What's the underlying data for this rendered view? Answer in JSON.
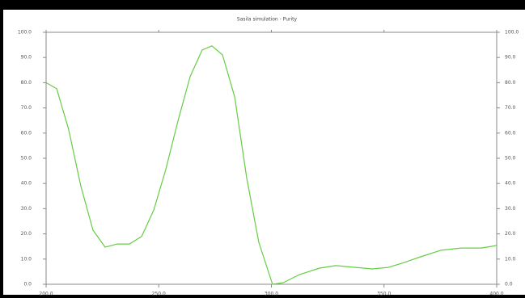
{
  "chart_data": {
    "type": "line",
    "title": "Sasila simulation - Purity",
    "x": [
      200,
      204.7,
      210,
      215.4,
      220.8,
      226.2,
      231.6,
      237,
      242.4,
      247.8,
      253.1,
      258.5,
      263.9,
      269.3,
      273.6,
      278.3,
      283.7,
      289,
      294.4,
      300.5,
      305.2,
      312.4,
      321.4,
      328.5,
      337.5,
      344.7,
      351.9,
      359.1,
      366.2,
      375.2,
      384.2,
      393.2,
      400
    ],
    "series": [
      {
        "name": "Purity",
        "color": "#66cc44",
        "values": [
          80,
          77.6,
          61.5,
          39,
          21.5,
          14.7,
          16,
          16,
          19,
          29.5,
          45.5,
          64.7,
          82.4,
          93,
          94.6,
          91,
          74.4,
          42.3,
          16.7,
          0,
          0.6,
          3.8,
          6.4,
          7.4,
          6.7,
          6.1,
          6.7,
          8.7,
          10.9,
          13.5,
          14.4,
          14.4,
          15.4
        ]
      }
    ],
    "xlim": [
      200,
      400
    ],
    "xticks": [
      {
        "value": 200,
        "label": "200.0"
      },
      {
        "value": 250,
        "label": "250.0"
      },
      {
        "value": 300,
        "label": "300.0"
      },
      {
        "value": 350,
        "label": "350.0"
      },
      {
        "value": 400,
        "label": "400.0"
      }
    ],
    "ylim": [
      0,
      100
    ],
    "yticks": [
      {
        "value": 0,
        "label": "0.0"
      },
      {
        "value": 10,
        "label": "10.0"
      },
      {
        "value": 20,
        "label": "20.0"
      },
      {
        "value": 30,
        "label": "30.0"
      },
      {
        "value": 40,
        "label": "40.0"
      },
      {
        "value": 50,
        "label": "50.0"
      },
      {
        "value": 60,
        "label": "60.0"
      },
      {
        "value": 70,
        "label": "70.0"
      },
      {
        "value": 80,
        "label": "80.0"
      },
      {
        "value": 90,
        "label": "90.0"
      },
      {
        "value": 100,
        "label": "100.0"
      }
    ],
    "y2lim": [
      0,
      100
    ],
    "y2ticks": [
      {
        "value": 0,
        "label": "0.0"
      },
      {
        "value": 10,
        "label": "10.0"
      },
      {
        "value": 20,
        "label": "20.0"
      },
      {
        "value": 30,
        "label": "30.0"
      },
      {
        "value": 40,
        "label": "40.0"
      },
      {
        "value": 50,
        "label": "50.0"
      },
      {
        "value": 60,
        "label": "60.0"
      },
      {
        "value": 70,
        "label": "70.0"
      },
      {
        "value": 80,
        "label": "80.0"
      },
      {
        "value": 90,
        "label": "90.0"
      },
      {
        "value": 100,
        "label": "100.0"
      }
    ]
  }
}
